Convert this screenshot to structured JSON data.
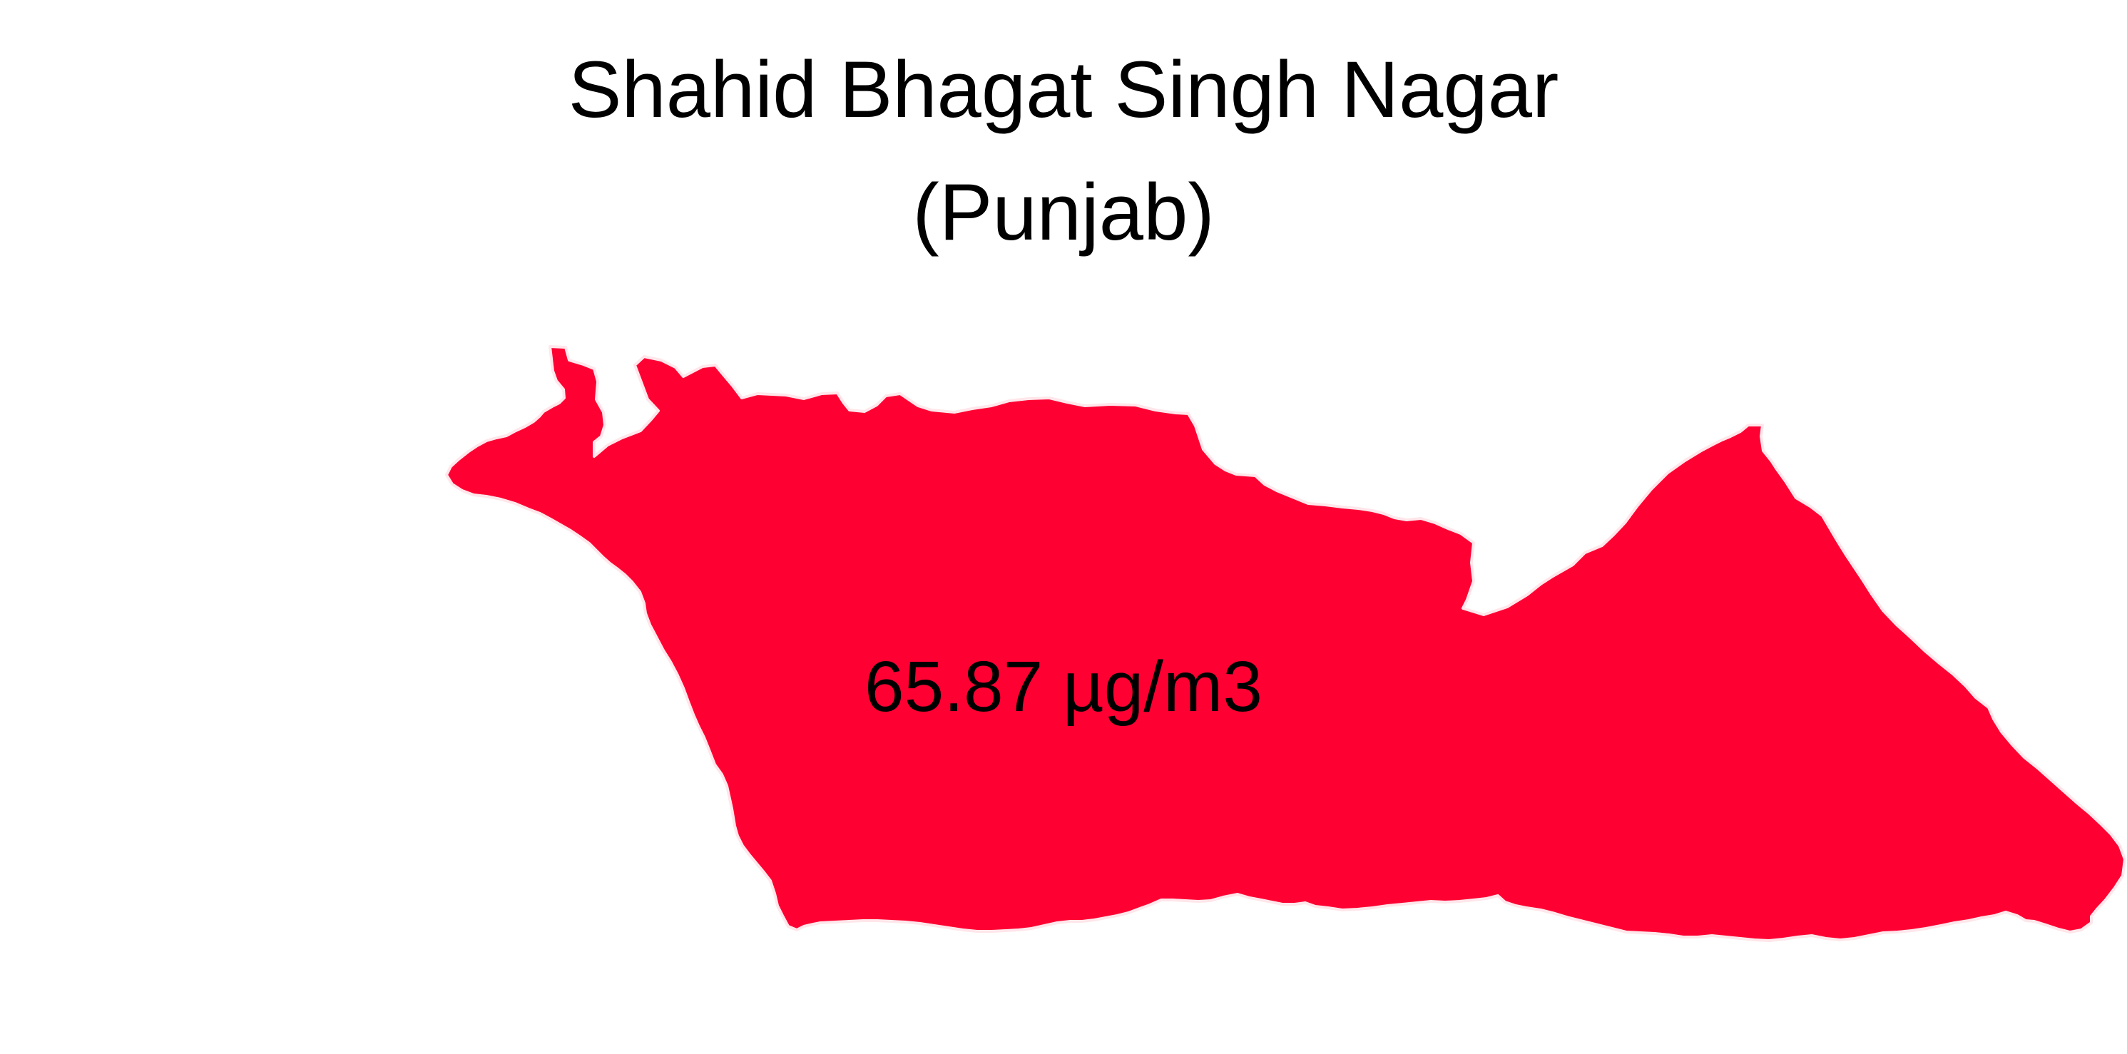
{
  "map": {
    "title_line1": "Shahid Bhagat Singh Nagar",
    "title_line2": "(Punjab)",
    "value_label": "65.87 µg/m3",
    "district_fill_color": "#FF0033",
    "district_stroke_color": "#FFE6EA",
    "background_color": "#FFFFFF"
  }
}
